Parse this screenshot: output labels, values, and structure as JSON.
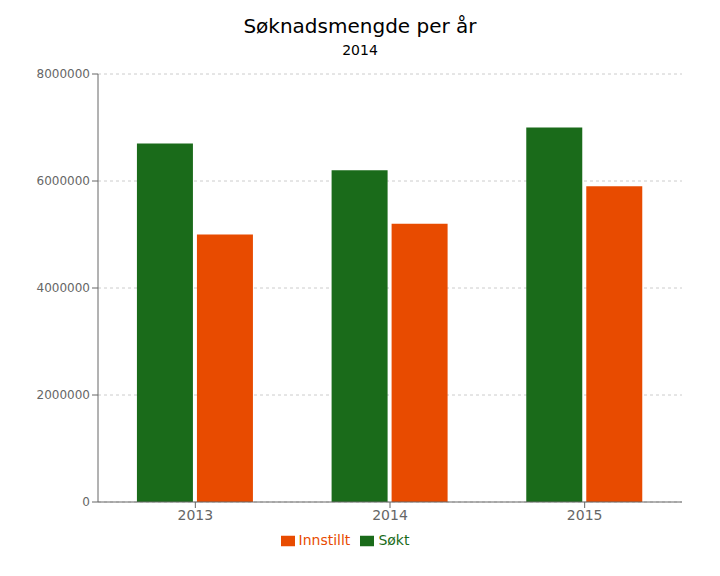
{
  "chart_data": {
    "type": "bar",
    "title": "Søknadsmengde per år",
    "subtitle": "2014",
    "categories": [
      "2013",
      "2014",
      "2015"
    ],
    "series": [
      {
        "name": "Søkt",
        "color": "#1a6b1a",
        "values": [
          6700000,
          6200000,
          7000000
        ]
      },
      {
        "name": "Innstillt",
        "color": "#e84b00",
        "values": [
          5000000,
          5200000,
          5900000
        ]
      }
    ],
    "ylim": [
      0,
      8000000
    ],
    "yticks": [
      0,
      2000000,
      4000000,
      6000000,
      8000000
    ],
    "grid": true,
    "legend": "bottom"
  }
}
